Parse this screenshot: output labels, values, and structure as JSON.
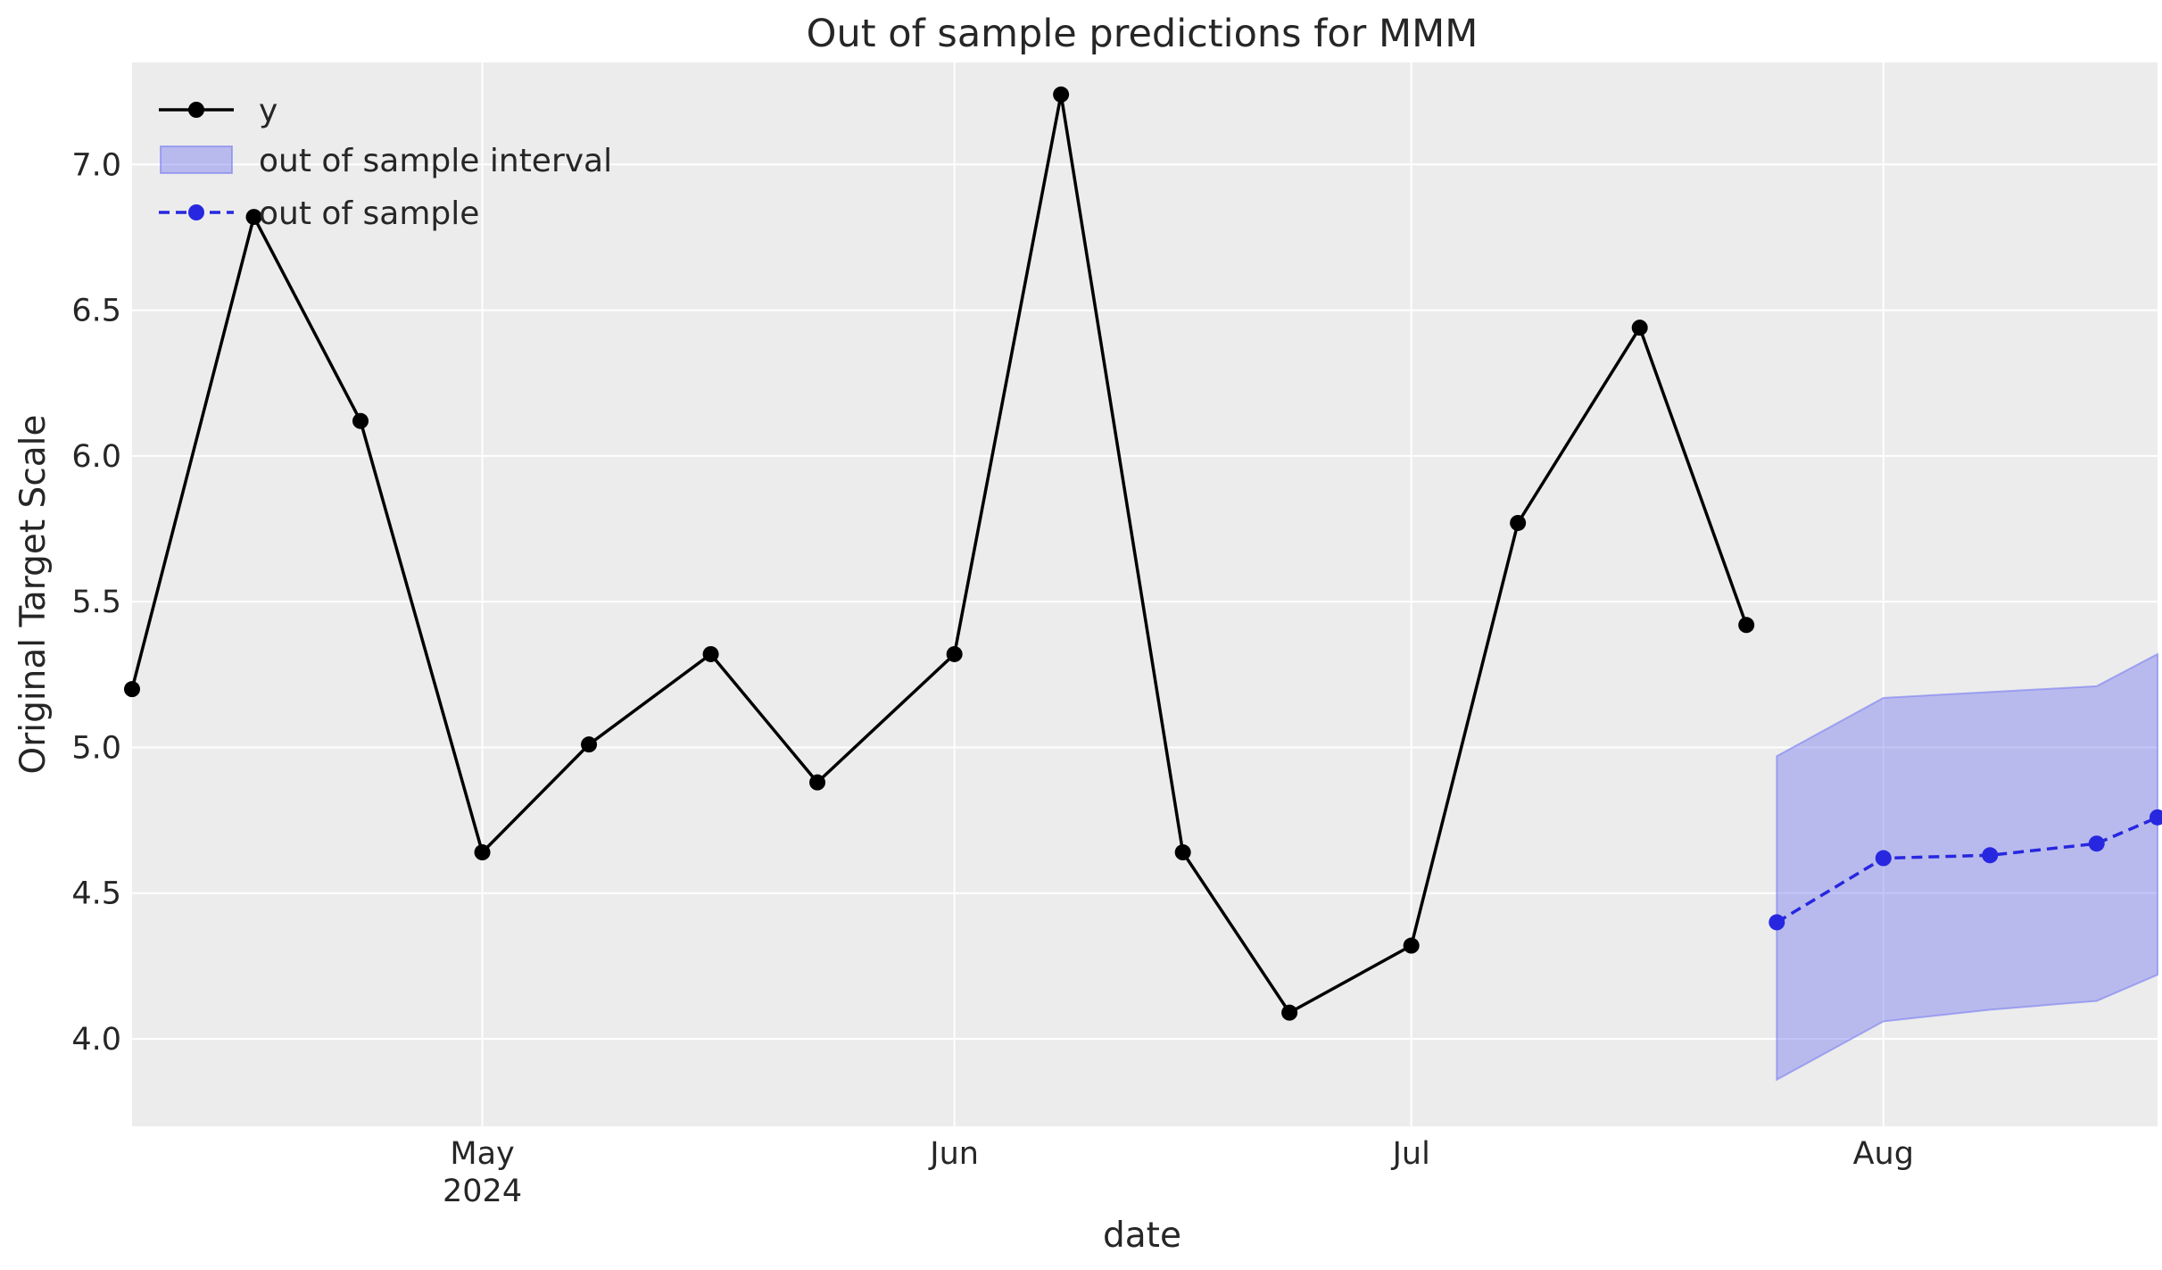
{
  "chart_data": {
    "type": "line",
    "title": "Out of sample predictions for MMM",
    "xlabel": "date",
    "ylabel": "Original Target Scale",
    "ylim": [
      3.7,
      7.35
    ],
    "xlim": [
      "2024-04-08",
      "2024-08-19"
    ],
    "grid": true,
    "background": "#ececec",
    "legend_position": "top-left",
    "y_ticks": [
      4.0,
      4.5,
      5.0,
      5.5,
      6.0,
      6.5,
      7.0
    ],
    "y_tick_labels": [
      "4.0",
      "4.5",
      "5.0",
      "5.5",
      "6.0",
      "6.5",
      "7.0"
    ],
    "x_ticks": [
      {
        "date": "2024-05-01",
        "label": "May",
        "sublabel": "2024"
      },
      {
        "date": "2024-06-01",
        "label": "Jun",
        "sublabel": ""
      },
      {
        "date": "2024-07-01",
        "label": "Jul",
        "sublabel": ""
      },
      {
        "date": "2024-08-01",
        "label": "Aug",
        "sublabel": ""
      }
    ],
    "series": [
      {
        "name": "y",
        "color": "#000000",
        "linestyle": "solid",
        "marker": "circle",
        "x": [
          "2024-04-08",
          "2024-04-16",
          "2024-04-23",
          "2024-05-01",
          "2024-05-08",
          "2024-05-16",
          "2024-05-23",
          "2024-06-01",
          "2024-06-08",
          "2024-06-16",
          "2024-06-23",
          "2024-07-01",
          "2024-07-08",
          "2024-07-16",
          "2024-07-23"
        ],
        "values": [
          5.2,
          6.82,
          6.12,
          4.64,
          5.01,
          5.32,
          4.88,
          5.32,
          7.24,
          4.64,
          4.09,
          4.32,
          5.77,
          6.44,
          5.42
        ]
      },
      {
        "name": "out of sample",
        "color": "#2727e0",
        "linestyle": "dashed",
        "marker": "circle",
        "x": [
          "2024-07-25",
          "2024-08-01",
          "2024-08-08",
          "2024-08-15",
          "2024-08-19"
        ],
        "values": [
          4.4,
          4.62,
          4.63,
          4.67,
          4.76
        ]
      }
    ],
    "bands": [
      {
        "name": "out of sample interval",
        "color": "#7a7ef0",
        "opacity": 0.45,
        "x": [
          "2024-07-25",
          "2024-08-01",
          "2024-08-08",
          "2024-08-15",
          "2024-08-19"
        ],
        "lower": [
          3.86,
          4.06,
          4.1,
          4.13,
          4.22
        ],
        "upper": [
          4.97,
          5.17,
          5.19,
          5.21,
          5.32
        ]
      }
    ]
  }
}
